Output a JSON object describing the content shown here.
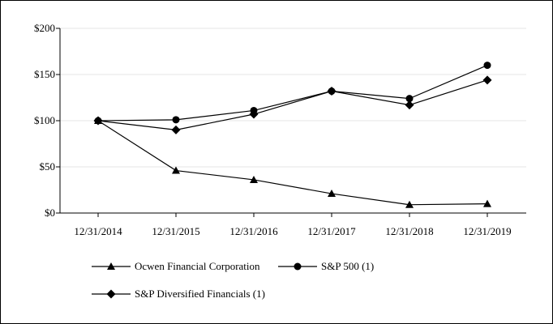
{
  "chart_data": {
    "type": "line",
    "title": "",
    "xlabel": "",
    "ylabel": "",
    "categories": [
      "12/31/2014",
      "12/31/2015",
      "12/31/2016",
      "12/31/2017",
      "12/31/2018",
      "12/31/2019"
    ],
    "y_ticks": [
      "$0",
      "$50",
      "$100",
      "$150",
      "$200"
    ],
    "ylim": [
      0,
      200
    ],
    "grid": "horizontal",
    "legend_position": "bottom",
    "series": [
      {
        "name": "Ocwen Financial Corporation",
        "marker": "triangle",
        "values": [
          100,
          46,
          36,
          21,
          9,
          10
        ]
      },
      {
        "name": "S&P 500 (1)",
        "marker": "circle",
        "values": [
          100,
          101,
          111,
          132,
          124,
          160
        ]
      },
      {
        "name": "S&P Diversified Financials (1)",
        "marker": "diamond",
        "values": [
          100,
          90,
          107,
          132,
          117,
          144
        ]
      }
    ],
    "colors": {
      "line": "#000000",
      "grid": "#e6e6e6"
    }
  }
}
